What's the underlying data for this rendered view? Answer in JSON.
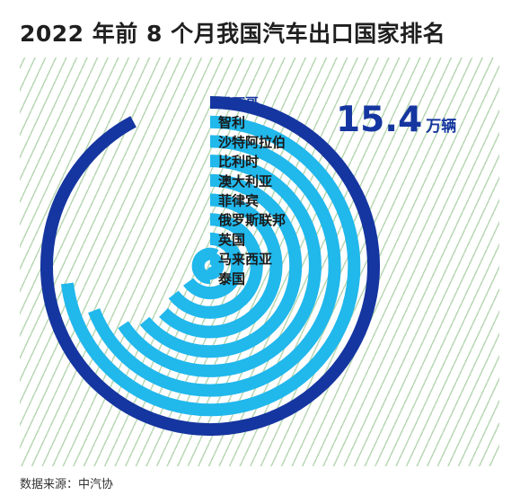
{
  "chart_data": {
    "type": "radial-bar",
    "title": "2022 年前 8 个月我国汽车出口国家排名",
    "categories": [
      "墨西哥",
      "智利",
      "沙特阿拉伯",
      "比利时",
      "澳大利亚",
      "菲律宾",
      "俄罗斯联邦",
      "英国",
      "马来西亚",
      "泰国"
    ],
    "highlight_index": 0,
    "annotation": {
      "value": "15.4",
      "unit": "万辆"
    },
    "source": "数据来源：中汽协",
    "grid": false,
    "legend": "none",
    "colors": {
      "highlight": "#1536a0",
      "bars": "#21b8ec",
      "highlight_label": "#1536a0",
      "labels": "#1a1a1a",
      "hatch": "#b9d8b5"
    }
  }
}
